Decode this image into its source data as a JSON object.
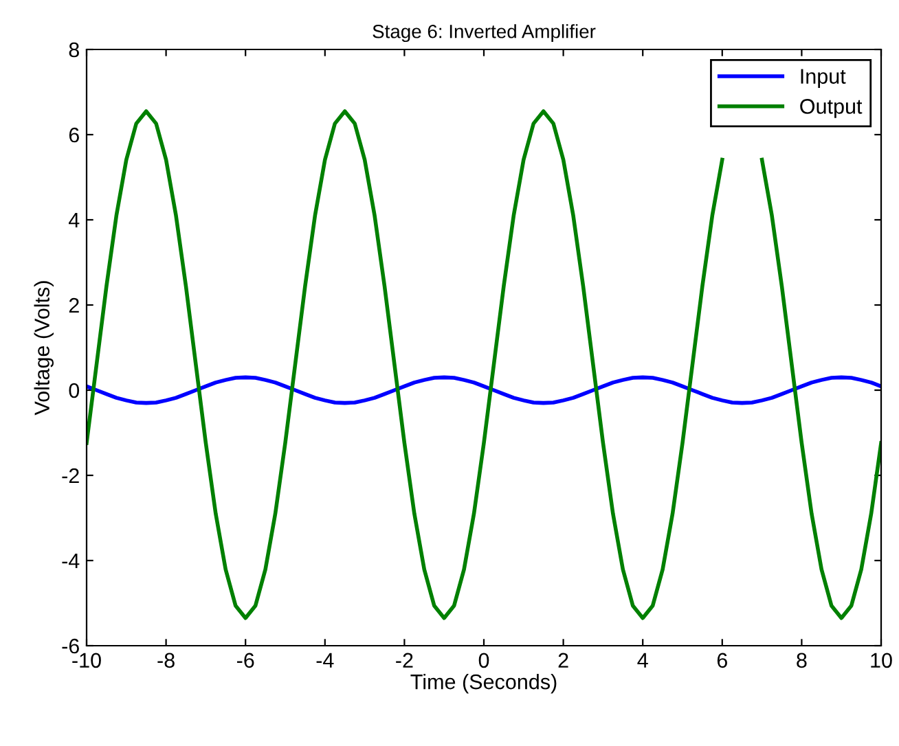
{
  "chart_data": {
    "type": "line",
    "title": "Stage 6: Inverted Amplifier",
    "xlabel": "Time (Seconds)",
    "ylabel": "Voltage (Volts)",
    "x": [
      -10,
      -9.75,
      -9.5,
      -9.25,
      -9,
      -8.75,
      -8.5,
      -8.25,
      -8,
      -7.75,
      -7.5,
      -7.25,
      -7,
      -6.75,
      -6.5,
      -6.25,
      -6,
      -5.75,
      -5.5,
      -5.25,
      -5,
      -4.75,
      -4.5,
      -4.25,
      -4,
      -3.75,
      -3.5,
      -3.25,
      -3,
      -2.75,
      -2.5,
      -2.25,
      -2,
      -1.75,
      -1.5,
      -1.25,
      -1,
      -0.75,
      -0.5,
      -0.25,
      0,
      0.25,
      0.5,
      0.75,
      1,
      1.25,
      1.5,
      1.75,
      2,
      2.25,
      2.5,
      2.75,
      3,
      3.25,
      3.5,
      3.75,
      4,
      4.25,
      4.5,
      4.75,
      5,
      5.25,
      5.5,
      5.75,
      6,
      6.25,
      6.5,
      6.75,
      7,
      7.25,
      7.5,
      7.75,
      8,
      8.25,
      8.5,
      8.75,
      9,
      9.25,
      9.5,
      9.75,
      10
    ],
    "series": [
      {
        "name": "Input",
        "color": "#0000ff",
        "values": [
          0.09,
          0,
          -0.09,
          -0.18,
          -0.24,
          -0.29,
          -0.3,
          -0.29,
          -0.24,
          -0.18,
          -0.09,
          0,
          0.09,
          0.18,
          0.24,
          0.29,
          0.3,
          0.29,
          0.24,
          0.18,
          0.09,
          0,
          -0.09,
          -0.18,
          -0.24,
          -0.29,
          -0.3,
          -0.29,
          -0.24,
          -0.18,
          -0.09,
          0,
          0.09,
          0.18,
          0.24,
          0.29,
          0.3,
          0.29,
          0.24,
          0.18,
          0.09,
          0,
          -0.09,
          -0.18,
          -0.24,
          -0.29,
          -0.3,
          -0.29,
          -0.24,
          -0.18,
          -0.09,
          0,
          0.09,
          0.18,
          0.24,
          0.29,
          0.3,
          0.29,
          0.24,
          0.18,
          0.09,
          0,
          -0.09,
          -0.18,
          -0.24,
          -0.29,
          -0.3,
          -0.29,
          -0.24,
          -0.18,
          -0.09,
          0,
          0.09,
          0.18,
          0.24,
          0.29,
          0.3,
          0.29,
          0.24,
          0.18,
          0.09
        ]
      },
      {
        "name": "Output",
        "color": "#008000",
        "values": [
          -1.24,
          0.6,
          2.44,
          4.1,
          5.41,
          6.26,
          6.55,
          6.26,
          5.41,
          4.1,
          2.44,
          0.6,
          -1.24,
          -2.9,
          -4.21,
          -5.06,
          -5.35,
          -5.06,
          -4.21,
          -2.9,
          -1.24,
          0.6,
          2.44,
          4.1,
          5.41,
          6.26,
          6.55,
          6.26,
          5.41,
          4.1,
          2.44,
          0.6,
          -1.24,
          -2.9,
          -4.21,
          -5.06,
          -5.35,
          -5.06,
          -4.21,
          -2.9,
          -1.24,
          0.6,
          2.44,
          4.1,
          5.41,
          6.26,
          6.55,
          6.26,
          5.41,
          4.1,
          2.44,
          0.6,
          -1.24,
          -2.9,
          -4.21,
          -5.06,
          -5.35,
          -5.06,
          -4.21,
          -2.9,
          -1.24,
          0.6,
          2.44,
          4.1,
          5.41,
          null,
          null,
          null,
          5.41,
          4.1,
          2.44,
          0.6,
          -1.24,
          -2.9,
          -4.21,
          -5.06,
          -5.35,
          -5.06,
          -4.21,
          -2.9,
          -1.24
        ]
      }
    ],
    "xlim": [
      -10,
      10
    ],
    "xticks": [
      -10,
      -8,
      -6,
      -4,
      -2,
      0,
      2,
      4,
      6,
      8,
      10
    ],
    "ylim": [
      -6,
      8
    ],
    "yticks": [
      -6,
      -4,
      -2,
      0,
      2,
      4,
      6,
      8
    ],
    "legend": "top right",
    "line_style": "solid"
  }
}
